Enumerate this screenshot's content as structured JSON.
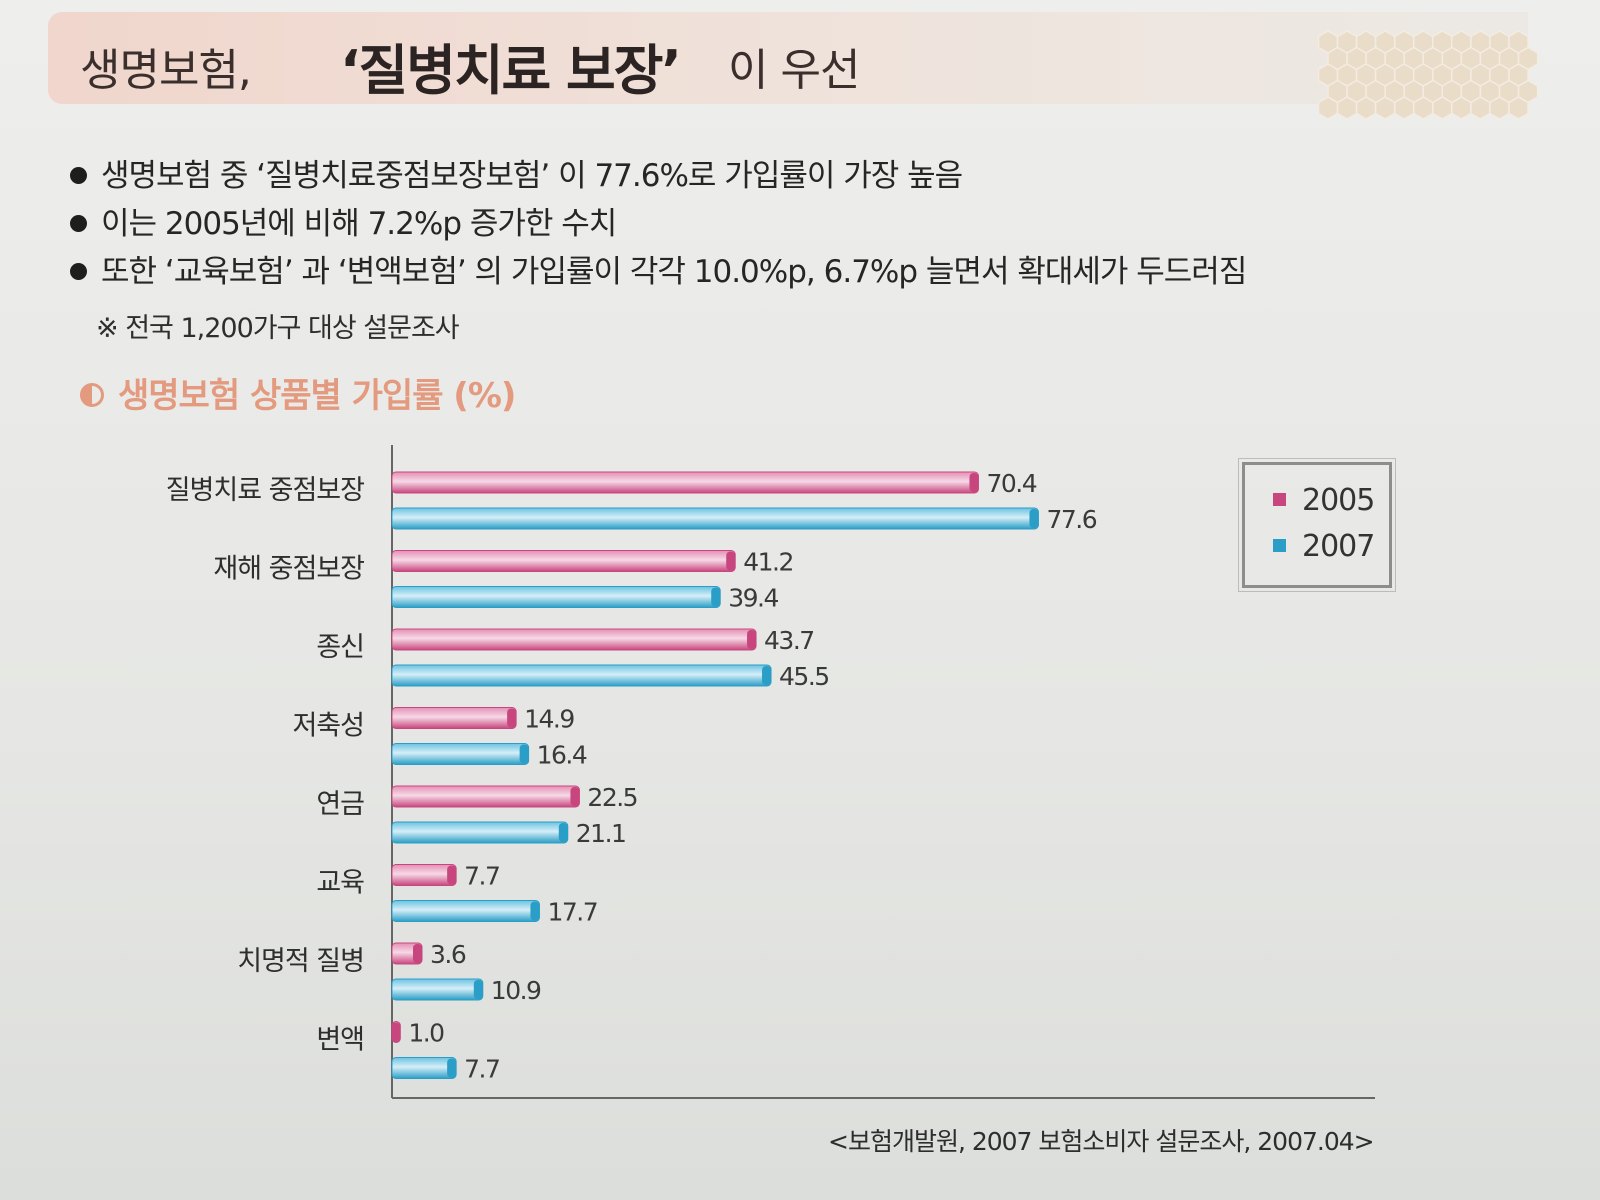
{
  "header": {
    "title_prefix": "생명보험,",
    "title_emphasis": "‘질병치료 보장’",
    "title_suffix": "이 우선"
  },
  "bullets": [
    "생명보험 중 ‘질병치료중점보장보험’ 이 77.6%로 가입률이 가장 높음",
    "이는 2005년에 비해 7.2%p 증가한 수치",
    "또한 ‘교육보험’ 과 ‘변액보험’ 의 가입률이 각각 10.0%p, 6.7%p 늘면서 확대세가 두드러짐"
  ],
  "note": "※ 전국 1,200가구 대상 설문조사",
  "colors": {
    "series_2005": "#c8467e",
    "series_2007": "#2a9ec6",
    "title_accent": "#e39a7f"
  },
  "chart_data": {
    "type": "bar",
    "orientation": "horizontal",
    "title": "생명보험 상품별 가입률 (%)",
    "categories": [
      "질병치료 중점보장",
      "재해 중점보장",
      "종신",
      "저축성",
      "연금",
      "교육",
      "치명적 질병",
      "변액"
    ],
    "series": [
      {
        "name": "2005",
        "values": [
          70.4,
          41.2,
          43.7,
          14.9,
          22.5,
          7.7,
          3.6,
          1.0
        ]
      },
      {
        "name": "2007",
        "values": [
          77.6,
          39.4,
          45.5,
          16.4,
          21.1,
          17.7,
          10.9,
          7.7
        ]
      }
    ],
    "value_labels": {
      "2005": [
        "70.4",
        "41.2",
        "43.7",
        "14.9",
        "22.5",
        "7.7",
        "3.6",
        "1.0"
      ],
      "2007": [
        "77.6",
        "39.4",
        "45.5",
        "16.4",
        "21.1",
        "17.7",
        "10.9",
        "7.7"
      ]
    },
    "xlim": [
      0,
      115
    ],
    "legend": {
      "position": "top-right",
      "entries": [
        "2005",
        "2007"
      ]
    },
    "grid": false
  },
  "source": "<보험개발원, 2007 보험소비자 설문조사, 2007.04>"
}
